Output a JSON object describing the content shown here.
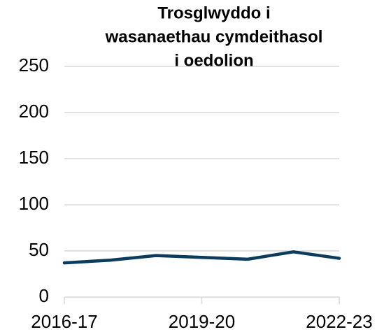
{
  "chart_data": {
    "type": "line",
    "title": [
      "Trosglwyddo i",
      "wasanaethau cymdeithasol",
      "i oedolion"
    ],
    "categories": [
      "2016-17",
      null,
      null,
      "2019-20",
      null,
      null,
      "2022-23"
    ],
    "series": [
      {
        "name": null,
        "color": "#0b3c5d",
        "values": [
          37,
          40,
          45,
          43,
          41,
          49,
          42
        ]
      }
    ],
    "ylim": [
      0,
      250
    ],
    "yticks": [
      0,
      50,
      100,
      150,
      200,
      250
    ],
    "grid": true
  }
}
